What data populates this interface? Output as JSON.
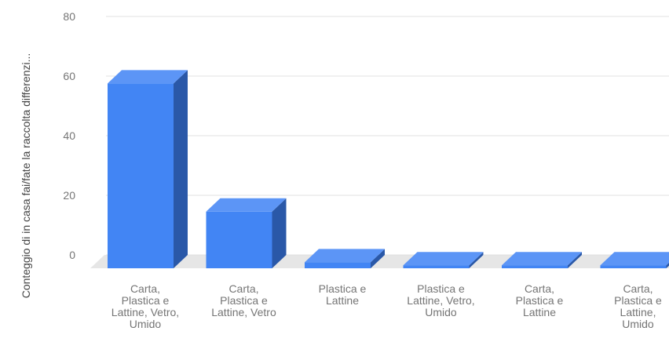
{
  "chart_data": {
    "type": "bar",
    "three_d": true,
    "ylabel": "Conteggio di in casa fai/fate la raccolta differenzi...",
    "xlabel": "",
    "ylim": [
      0,
      80
    ],
    "yticks": [
      "0",
      "20",
      "40",
      "60",
      "80"
    ],
    "grid": true,
    "legend": "none",
    "categories": [
      [
        "Carta,",
        "Plastica e",
        "Lattine, Vetro,",
        "Umido"
      ],
      [
        "Carta,",
        "Plastica e",
        "Lattine, Vetro"
      ],
      [
        "Plastica e",
        "Lattine"
      ],
      [
        "Plastica e",
        "Lattine, Vetro,",
        "Umido"
      ],
      [
        "Carta,",
        "Plastica e",
        "Lattine"
      ],
      [
        "Carta,",
        "Plastica e",
        "Lattine,",
        "Umido"
      ]
    ],
    "series": [
      {
        "values": [
          62,
          19,
          2,
          1,
          1,
          1
        ]
      }
    ],
    "colors": {
      "front": "#4285f4",
      "top": "#5c95f6",
      "side": "#2a58a8",
      "grid": "#e0e0e0",
      "floor": "#e6e6e6"
    }
  }
}
